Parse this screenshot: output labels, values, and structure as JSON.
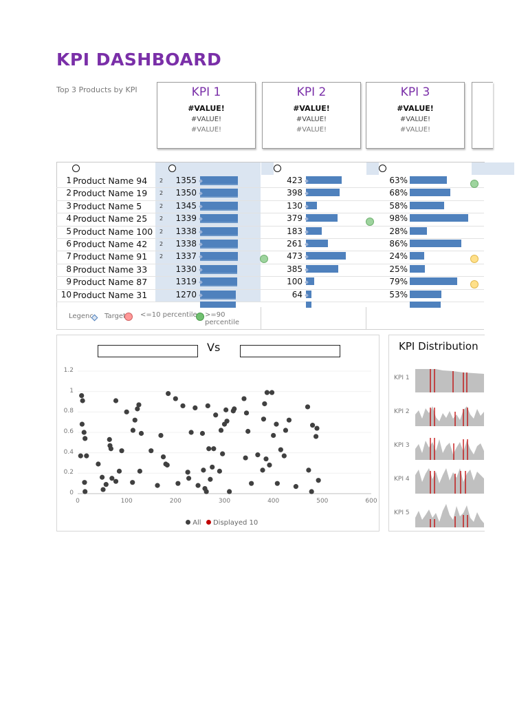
{
  "title": "KPI DASHBOARD",
  "subtitle": "Top 3 Products by KPI",
  "kpi_cards": [
    {
      "title": "KPI 1",
      "v1": "#VALUE!",
      "v2": "#VALUE!",
      "v3": "#VALUE!"
    },
    {
      "title": "KPI 2",
      "v1": "#VALUE!",
      "v2": "#VALUE!",
      "v3": "#VALUE!"
    },
    {
      "title": "KPI 3",
      "v1": "#VALUE!",
      "v2": "#VALUE!",
      "v3": "#VALUE!"
    }
  ],
  "rows": [
    {
      "num": "1",
      "name": "Product Name 94",
      "rank": "2",
      "v1": "1355",
      "v2": "423",
      "v3": "63%",
      "b1": 0.95,
      "b2": 0.89,
      "b3": 0.64
    },
    {
      "num": "2",
      "name": "Product Name 19",
      "rank": "2",
      "v1": "1350",
      "v2": "398",
      "v3": "68%",
      "b1": 0.94,
      "b2": 0.84,
      "b3": 0.69
    },
    {
      "num": "3",
      "name": "Product Name 5",
      "rank": "2",
      "v1": "1345",
      "v2": "130",
      "v3": "58%",
      "b1": 0.94,
      "b2": 0.27,
      "b3": 0.59
    },
    {
      "num": "4",
      "name": "Product Name 25",
      "rank": "2",
      "v1": "1339",
      "v2": "379",
      "v3": "98%",
      "b1": 0.94,
      "b2": 0.8,
      "b3": 1.0
    },
    {
      "num": "5",
      "name": "Product Name 100",
      "rank": "2",
      "v1": "1338",
      "v2": "183",
      "v3": "28%",
      "b1": 0.94,
      "b2": 0.39,
      "b3": 0.29
    },
    {
      "num": "6",
      "name": "Product Name 42",
      "rank": "2",
      "v1": "1338",
      "v2": "261",
      "v3": "86%",
      "b1": 0.94,
      "b2": 0.55,
      "b3": 0.88
    },
    {
      "num": "7",
      "name": "Product Name 91",
      "rank": "2",
      "v1": "1337",
      "v2": "473",
      "v3": "24%",
      "b1": 0.94,
      "b2": 1.0,
      "b3": 0.25
    },
    {
      "num": "8",
      "name": "Product Name 33",
      "rank": "",
      "v1": "1330",
      "v2": "385",
      "v3": "25%",
      "b1": 0.93,
      "b2": 0.81,
      "b3": 0.26
    },
    {
      "num": "9",
      "name": "Product Name 87",
      "rank": "",
      "v1": "1319",
      "v2": "100",
      "v3": "79%",
      "b1": 0.93,
      "b2": 0.21,
      "b3": 0.81
    },
    {
      "num": "10",
      "name": "Product Name 31",
      "rank": "",
      "v1": "1270",
      "v2": "64",
      "v3": "53%",
      "b1": 0.89,
      "b2": 0.14,
      "b3": 0.54
    }
  ],
  "legend": {
    "legend_label": "Legenc",
    "target_label": "Target",
    "low_label": "<=10 percentile",
    "high_label": ">=90 percentile",
    "low_color": "#ff7c80",
    "high_color": "#70c070"
  },
  "scatter": {
    "vs_label": "Vs",
    "y_ticks": [
      "1.2",
      "1",
      "0.8",
      "0.6",
      "0.4",
      "0.2",
      "0"
    ],
    "x_ticks": [
      "0",
      "100",
      "200",
      "300",
      "400",
      "500",
      "600"
    ],
    "legend_all": "All",
    "legend_displayed": "Displayed 10"
  },
  "distribution": {
    "title": "KPI Distribution",
    "labels": [
      "KPI 1",
      "KPI 2",
      "KPI 3",
      "KPI 4",
      "KPI 5"
    ]
  },
  "chart_data": {
    "type": "scatter",
    "xlim": [
      0,
      600
    ],
    "ylim": [
      0,
      1.2
    ],
    "series": [
      {
        "name": "All",
        "color": "#404040",
        "points": [
          [
            8,
            0.96
          ],
          [
            10,
            0.91
          ],
          [
            9,
            0.68
          ],
          [
            13,
            0.6
          ],
          [
            15,
            0.54
          ],
          [
            6,
            0.37
          ],
          [
            18,
            0.37
          ],
          [
            14,
            0.11
          ],
          [
            15,
            0.02
          ],
          [
            42,
            0.29
          ],
          [
            50,
            0.16
          ],
          [
            52,
            0.04
          ],
          [
            58,
            0.09
          ],
          [
            65,
            0.53
          ],
          [
            66,
            0.47
          ],
          [
            68,
            0.44
          ],
          [
            70,
            0.15
          ],
          [
            78,
            0.12
          ],
          [
            78,
            0.91
          ],
          [
            85,
            0.22
          ],
          [
            90,
            0.42
          ],
          [
            100,
            0.8
          ],
          [
            112,
            0.11
          ],
          [
            113,
            0.62
          ],
          [
            117,
            0.72
          ],
          [
            122,
            0.83
          ],
          [
            125,
            0.87
          ],
          [
            127,
            0.22
          ],
          [
            130,
            0.59
          ],
          [
            150,
            0.42
          ],
          [
            163,
            0.08
          ],
          [
            170,
            0.57
          ],
          [
            175,
            0.36
          ],
          [
            180,
            0.29
          ],
          [
            183,
            0.28
          ],
          [
            185,
            0.98
          ],
          [
            200,
            0.93
          ],
          [
            205,
            0.1
          ],
          [
            215,
            0.86
          ],
          [
            225,
            0.21
          ],
          [
            227,
            0.15
          ],
          [
            232,
            0.6
          ],
          [
            240,
            0.84
          ],
          [
            246,
            0.08
          ],
          [
            255,
            0.59
          ],
          [
            257,
            0.23
          ],
          [
            260,
            0.05
          ],
          [
            263,
            0.02
          ],
          [
            266,
            0.86
          ],
          [
            268,
            0.44
          ],
          [
            271,
            0.14
          ],
          [
            275,
            0.26
          ],
          [
            278,
            0.44
          ],
          [
            282,
            0.77
          ],
          [
            290,
            0.22
          ],
          [
            293,
            0.62
          ],
          [
            296,
            0.39
          ],
          [
            300,
            0.68
          ],
          [
            303,
            0.82
          ],
          [
            305,
            0.71
          ],
          [
            310,
            0.02
          ],
          [
            318,
            0.81
          ],
          [
            320,
            0.83
          ],
          [
            340,
            0.93
          ],
          [
            343,
            0.35
          ],
          [
            345,
            0.79
          ],
          [
            348,
            0.61
          ],
          [
            355,
            0.1
          ],
          [
            368,
            0.38
          ],
          [
            378,
            0.23
          ],
          [
            380,
            0.73
          ],
          [
            382,
            0.88
          ],
          [
            385,
            0.34
          ],
          [
            387,
            0.99
          ],
          [
            392,
            0.28
          ],
          [
            397,
            0.99
          ],
          [
            400,
            0.57
          ],
          [
            406,
            0.68
          ],
          [
            408,
            0.1
          ],
          [
            415,
            0.43
          ],
          [
            422,
            0.37
          ],
          [
            425,
            0.62
          ],
          [
            432,
            0.72
          ],
          [
            446,
            0.07
          ],
          [
            470,
            0.85
          ],
          [
            472,
            0.23
          ],
          [
            478,
            0.02
          ],
          [
            480,
            0.67
          ],
          [
            487,
            0.56
          ],
          [
            489,
            0.64
          ],
          [
            492,
            0.13
          ]
        ]
      },
      {
        "name": "Displayed 10",
        "color": "#c00000",
        "points": []
      }
    ]
  }
}
